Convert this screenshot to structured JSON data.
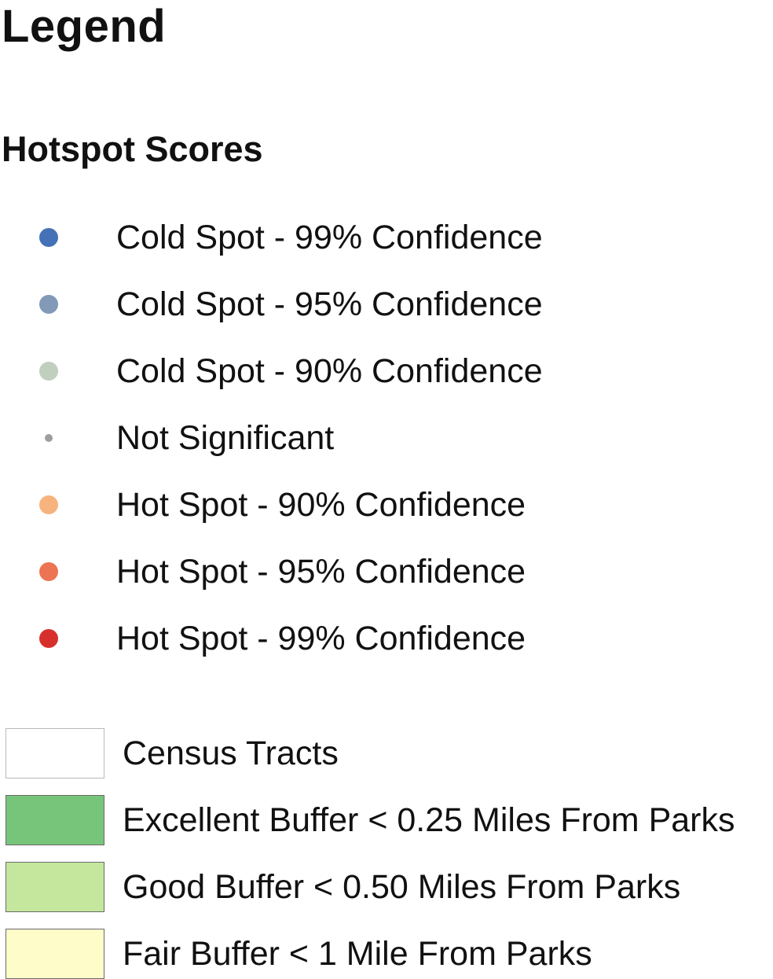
{
  "legend": {
    "title": "Legend",
    "hotspot_section": {
      "title": "Hotspot Scores",
      "items": [
        {
          "label": "Cold Spot - 99% Confidence",
          "color": "#4572b6",
          "icon": "circle-icon"
        },
        {
          "label": "Cold Spot - 95% Confidence",
          "color": "#8299b8",
          "icon": "circle-icon"
        },
        {
          "label": "Cold Spot - 90% Confidence",
          "color": "#c1cfbf",
          "icon": "circle-icon"
        },
        {
          "label": "Not Significant",
          "color": "#9e9e9e",
          "icon": "small-circle-icon"
        },
        {
          "label": "Hot Spot - 90% Confidence",
          "color": "#f7b37d",
          "icon": "circle-icon"
        },
        {
          "label": "Hot Spot - 95% Confidence",
          "color": "#ec7453",
          "icon": "circle-icon"
        },
        {
          "label": "Hot Spot - 99% Confidence",
          "color": "#d7302c",
          "icon": "circle-icon"
        }
      ]
    },
    "area_items": [
      {
        "label": "Census Tracts",
        "fill": "#ffffff",
        "border": "#b9b9b9"
      },
      {
        "label": "Excellent Buffer < 0.25 Miles From Parks",
        "fill": "#77c57b",
        "border": "#6a6a6a"
      },
      {
        "label": "Good Buffer < 0.50 Miles From Parks",
        "fill": "#c5e79d",
        "border": "#6a6a6a"
      },
      {
        "label": "Fair Buffer < 1 Mile From Parks",
        "fill": "#fefdca",
        "border": "#6a6a6a"
      }
    ]
  }
}
